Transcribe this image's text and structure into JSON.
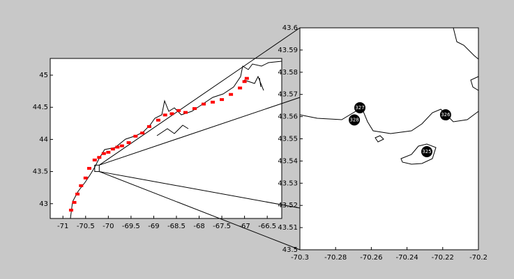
{
  "chart_data": [
    {
      "type": "scatter",
      "xlim": [
        -71.28,
        -66.18
      ],
      "ylim": [
        42.77,
        45.26
      ],
      "xticks": [
        -71,
        -70.5,
        -70,
        -69.5,
        -69,
        -68.5,
        -68,
        -67.5,
        -67,
        -66.5
      ],
      "yticks": [
        43,
        43.5,
        44,
        44.5,
        45
      ],
      "series": [
        {
          "color": "#ff0000",
          "x": [
            -70.82,
            -70.75,
            -70.68,
            -70.6,
            -70.5,
            -70.42,
            -70.3,
            -70.2,
            -70.1,
            -70.0,
            -69.9,
            -69.8,
            -69.7,
            -69.55,
            -69.4,
            -69.25,
            -69.1,
            -68.9,
            -68.75,
            -68.6,
            -68.45,
            -68.3,
            -68.1,
            -67.9,
            -67.7,
            -67.5,
            -67.3,
            -67.1,
            -67.0,
            -66.95
          ],
          "y": [
            42.9,
            43.02,
            43.15,
            43.28,
            43.4,
            43.55,
            43.68,
            43.72,
            43.78,
            43.8,
            43.85,
            43.88,
            43.9,
            43.95,
            44.05,
            44.1,
            44.2,
            44.3,
            44.38,
            44.4,
            44.45,
            44.42,
            44.48,
            44.55,
            44.58,
            44.62,
            44.7,
            44.8,
            44.9,
            44.95
          ]
        }
      ]
    },
    {
      "type": "scatter",
      "xlim": [
        -70.3,
        -70.2
      ],
      "ylim": [
        43.5,
        43.6
      ],
      "xticks": [
        -70.3,
        -70.28,
        -70.26,
        -70.24,
        -70.22,
        -70.2
      ],
      "yticks": [
        43.5,
        43.51,
        43.52,
        43.53,
        43.54,
        43.55,
        43.56,
        43.57,
        43.58,
        43.59,
        43.6
      ],
      "series": [
        {
          "color": "#000000",
          "x": [
            -70.2289,
            -70.2184,
            -70.2664,
            -70.2695
          ],
          "y": [
            43.5442,
            43.5608,
            43.564,
            43.5585
          ],
          "point_labels": [
            "325",
            "326",
            "327",
            "328"
          ]
        }
      ]
    }
  ]
}
